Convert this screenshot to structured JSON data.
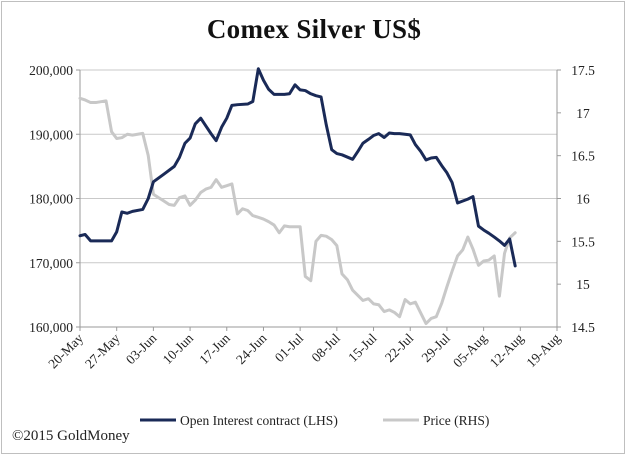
{
  "chart_data": {
    "type": "line",
    "title": "Comex Silver US$",
    "x": [
      "20-May",
      "27-May",
      "03-Jun",
      "10-Jun",
      "17-Jun",
      "24-Jun",
      "01-Jul",
      "08-Jul",
      "15-Jul",
      "22-Jul",
      "29-Jul",
      "05-Aug",
      "12-Aug",
      "19-Aug"
    ],
    "left_axis": {
      "ylim": [
        160000,
        200000
      ],
      "ticks": [
        "160,000",
        "170,000",
        "180,000",
        "190,000",
        "200,000"
      ]
    },
    "right_axis": {
      "ylim": [
        14.5,
        17.5
      ],
      "ticks": [
        "14.5",
        "15",
        "15.5",
        "16",
        "16.5",
        "17",
        "17.5"
      ]
    },
    "grid": "horizontal",
    "legend_placement": "bottom",
    "series": [
      {
        "name": "Open Interest contract (LHS)",
        "axis": "left",
        "color": "#1a2a57",
        "points": [
          [
            0,
            174200
          ],
          [
            0.14,
            174400
          ],
          [
            0.29,
            173400
          ],
          [
            0.57,
            173400
          ],
          [
            0.86,
            173400
          ],
          [
            1.0,
            174800
          ],
          [
            1.14,
            177900
          ],
          [
            1.29,
            177700
          ],
          [
            1.43,
            178000
          ],
          [
            1.71,
            178300
          ],
          [
            1.86,
            180000
          ],
          [
            2.0,
            182600
          ],
          [
            2.29,
            183800
          ],
          [
            2.57,
            185000
          ],
          [
            2.71,
            186400
          ],
          [
            2.86,
            188600
          ],
          [
            3.0,
            189400
          ],
          [
            3.14,
            191600
          ],
          [
            3.29,
            192500
          ],
          [
            3.43,
            191300
          ],
          [
            3.57,
            190100
          ],
          [
            3.71,
            189000
          ],
          [
            3.86,
            191100
          ],
          [
            4.0,
            192500
          ],
          [
            4.14,
            194500
          ],
          [
            4.29,
            194600
          ],
          [
            4.57,
            194700
          ],
          [
            4.71,
            195100
          ],
          [
            4.86,
            200200
          ],
          [
            5.0,
            198400
          ],
          [
            5.14,
            197000
          ],
          [
            5.29,
            196200
          ],
          [
            5.57,
            196200
          ],
          [
            5.71,
            196300
          ],
          [
            5.86,
            197700
          ],
          [
            6.0,
            196900
          ],
          [
            6.14,
            196800
          ],
          [
            6.29,
            196300
          ],
          [
            6.43,
            196000
          ],
          [
            6.57,
            195800
          ],
          [
            6.71,
            191500
          ],
          [
            6.86,
            187600
          ],
          [
            7.0,
            187000
          ],
          [
            7.14,
            186800
          ],
          [
            7.43,
            186100
          ],
          [
            7.57,
            187300
          ],
          [
            7.71,
            188600
          ],
          [
            7.86,
            189200
          ],
          [
            8.0,
            189800
          ],
          [
            8.14,
            190100
          ],
          [
            8.29,
            189500
          ],
          [
            8.43,
            190200
          ],
          [
            8.57,
            190100
          ],
          [
            8.71,
            190100
          ],
          [
            9.0,
            189900
          ],
          [
            9.14,
            188400
          ],
          [
            9.29,
            187300
          ],
          [
            9.43,
            186000
          ],
          [
            9.57,
            186300
          ],
          [
            9.71,
            186400
          ],
          [
            9.86,
            185100
          ],
          [
            10.0,
            184000
          ],
          [
            10.14,
            182500
          ],
          [
            10.29,
            179300
          ],
          [
            10.57,
            179900
          ],
          [
            10.71,
            180300
          ],
          [
            10.86,
            175700
          ],
          [
            11.0,
            175100
          ],
          [
            11.14,
            174600
          ],
          [
            11.29,
            174000
          ],
          [
            11.43,
            173400
          ],
          [
            11.57,
            172700
          ],
          [
            11.71,
            173700
          ],
          [
            11.86,
            169500
          ]
        ]
      },
      {
        "name": "Price (RHS)",
        "axis": "right",
        "color": "#c8c8c8",
        "points": [
          [
            0,
            17.17
          ],
          [
            0.14,
            17.15
          ],
          [
            0.29,
            17.12
          ],
          [
            0.43,
            17.12
          ],
          [
            0.57,
            17.13
          ],
          [
            0.71,
            17.14
          ],
          [
            0.86,
            16.78
          ],
          [
            1.0,
            16.7
          ],
          [
            1.14,
            16.71
          ],
          [
            1.29,
            16.75
          ],
          [
            1.43,
            16.74
          ],
          [
            1.57,
            16.75
          ],
          [
            1.71,
            16.76
          ],
          [
            1.86,
            16.5
          ],
          [
            2.0,
            16.05
          ],
          [
            2.14,
            16.01
          ],
          [
            2.29,
            15.97
          ],
          [
            2.43,
            15.93
          ],
          [
            2.57,
            15.92
          ],
          [
            2.71,
            16.01
          ],
          [
            2.86,
            16.03
          ],
          [
            3.0,
            15.92
          ],
          [
            3.14,
            15.98
          ],
          [
            3.29,
            16.07
          ],
          [
            3.43,
            16.11
          ],
          [
            3.57,
            16.13
          ],
          [
            3.71,
            16.22
          ],
          [
            3.86,
            16.13
          ],
          [
            4.0,
            16.15
          ],
          [
            4.14,
            16.17
          ],
          [
            4.29,
            15.82
          ],
          [
            4.43,
            15.88
          ],
          [
            4.57,
            15.86
          ],
          [
            4.71,
            15.8
          ],
          [
            4.86,
            15.78
          ],
          [
            5.0,
            15.76
          ],
          [
            5.14,
            15.73
          ],
          [
            5.29,
            15.69
          ],
          [
            5.43,
            15.6
          ],
          [
            5.57,
            15.68
          ],
          [
            5.71,
            15.67
          ],
          [
            5.86,
            15.67
          ],
          [
            6.0,
            15.67
          ],
          [
            6.14,
            15.09
          ],
          [
            6.29,
            15.04
          ],
          [
            6.43,
            15.5
          ],
          [
            6.57,
            15.57
          ],
          [
            6.71,
            15.56
          ],
          [
            6.86,
            15.52
          ],
          [
            7.0,
            15.45
          ],
          [
            7.14,
            15.12
          ],
          [
            7.29,
            15.05
          ],
          [
            7.43,
            14.93
          ],
          [
            7.57,
            14.87
          ],
          [
            7.71,
            14.81
          ],
          [
            7.86,
            14.83
          ],
          [
            8.0,
            14.77
          ],
          [
            8.14,
            14.76
          ],
          [
            8.29,
            14.68
          ],
          [
            8.43,
            14.7
          ],
          [
            8.57,
            14.67
          ],
          [
            8.71,
            14.62
          ],
          [
            8.86,
            14.82
          ],
          [
            9.0,
            14.77
          ],
          [
            9.14,
            14.79
          ],
          [
            9.29,
            14.66
          ],
          [
            9.43,
            14.54
          ],
          [
            9.57,
            14.6
          ],
          [
            9.71,
            14.62
          ],
          [
            9.86,
            14.78
          ],
          [
            10.0,
            14.97
          ],
          [
            10.14,
            15.15
          ],
          [
            10.29,
            15.33
          ],
          [
            10.43,
            15.4
          ],
          [
            10.57,
            15.55
          ],
          [
            10.71,
            15.41
          ],
          [
            10.86,
            15.22
          ],
          [
            11.0,
            15.27
          ],
          [
            11.14,
            15.28
          ],
          [
            11.29,
            15.33
          ],
          [
            11.43,
            14.86
          ],
          [
            11.57,
            15.36
          ],
          [
            11.71,
            15.54
          ],
          [
            11.86,
            15.6
          ]
        ]
      }
    ]
  },
  "footer": {
    "copyright": "©2015 GoldMoney"
  }
}
